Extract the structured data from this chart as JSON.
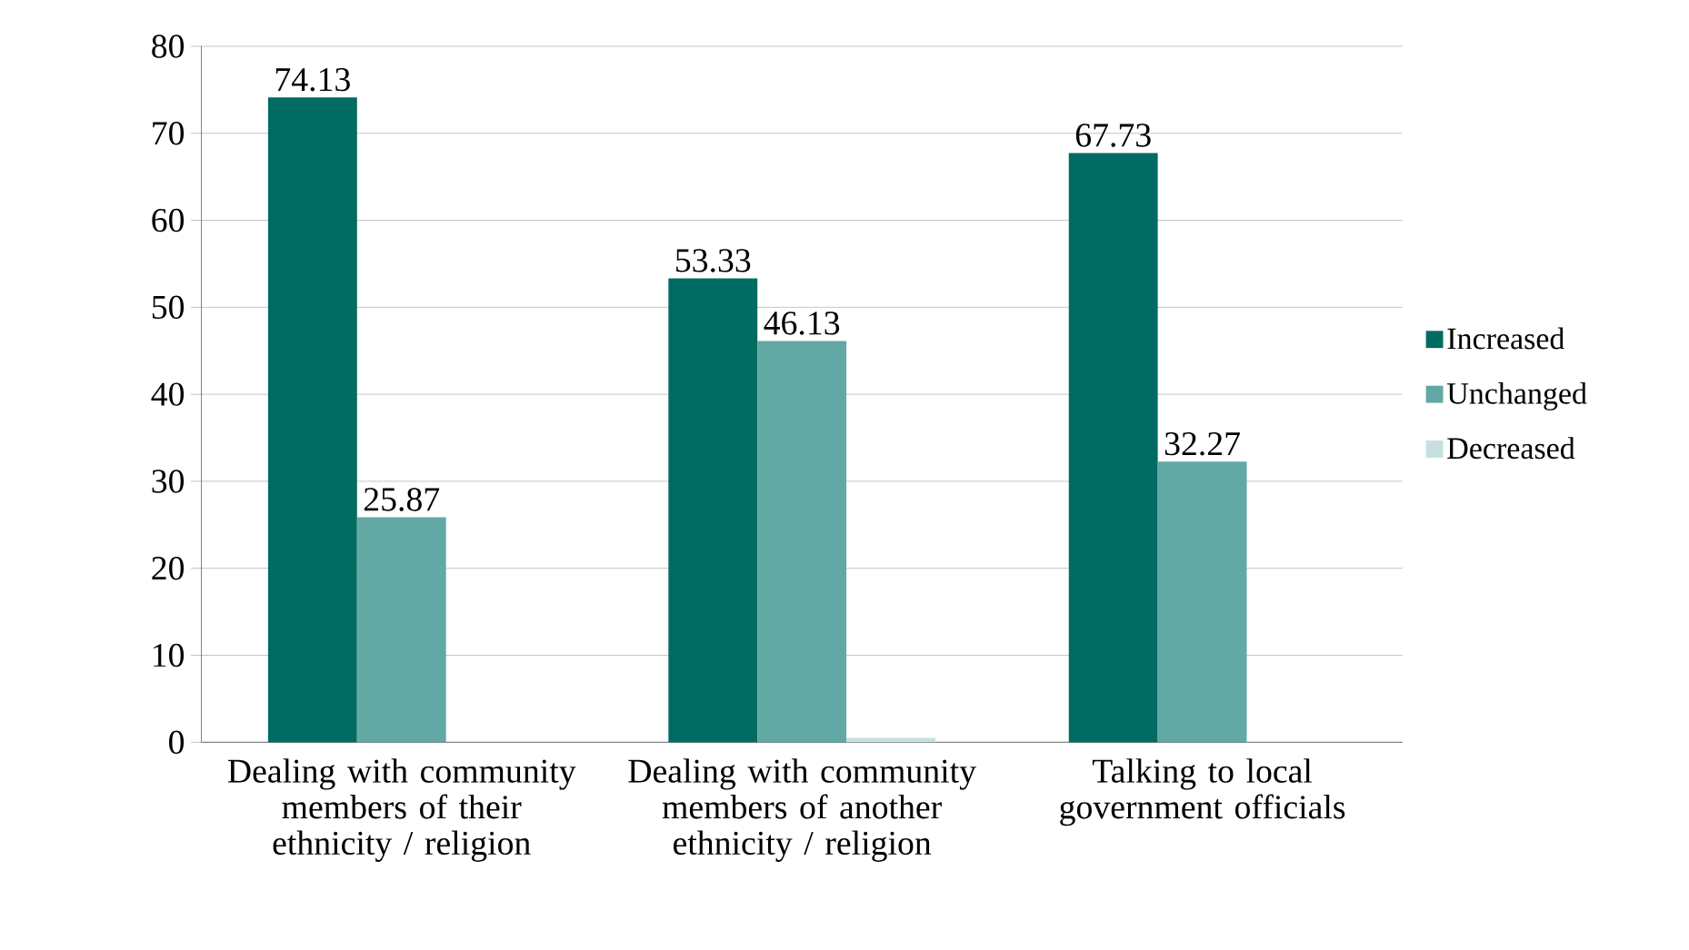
{
  "chart_data": {
    "type": "bar",
    "categories": [
      "Dealing with community members of their ethnicity / religion",
      "Dealing with community members of another ethnicity / religion",
      "Talking to local government officials"
    ],
    "series": [
      {
        "name": "Increased",
        "color": "#006b61",
        "values": [
          74.13,
          53.33,
          67.73
        ],
        "value_labels": [
          "74.13",
          "53.33",
          "67.73"
        ]
      },
      {
        "name": "Unchanged",
        "color": "#62a8a4",
        "values": [
          25.87,
          46.13,
          32.27
        ],
        "value_labels": [
          "25.87",
          "46.13",
          "32.27"
        ]
      },
      {
        "name": "Decreased",
        "color": "#c5e0de",
        "values": [
          0,
          0.5,
          0
        ]
      }
    ],
    "ylim": [
      0,
      80
    ],
    "yticks": [
      0,
      10,
      20,
      30,
      40,
      50,
      60,
      70,
      80
    ],
    "grid": "y",
    "legend": "right"
  }
}
